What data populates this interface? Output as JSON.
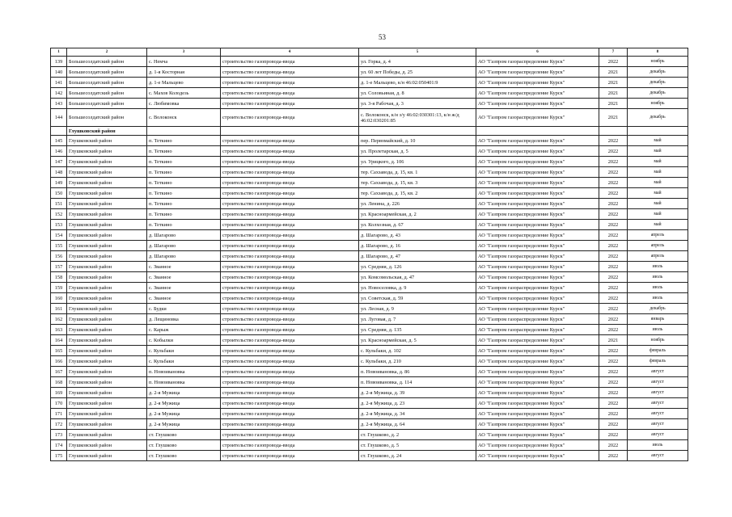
{
  "page_number": "53",
  "columns": [
    "1",
    "2",
    "3",
    "4",
    "5",
    "6",
    "7",
    "8"
  ],
  "rows": [
    {
      "n": "139",
      "district": "Большесолдатский район",
      "settlement": "с. Немча",
      "work": "строительство газопровода-ввода",
      "address": "ул. Горка, д. 4",
      "org": "АО \"Газпром газораспределение Курск\"",
      "year": "2022",
      "month": "ноябрь"
    },
    {
      "n": "140",
      "district": "Большесолдатский район",
      "settlement": "д. 1-я Косторная",
      "work": "строительство газопровода-ввода",
      "address": "ул. 60 лет Победы, д. 25",
      "org": "АО \"Газпром газораспределение Курск\"",
      "year": "2021",
      "month": "декабрь"
    },
    {
      "n": "141",
      "district": "Большесолдатский район",
      "settlement": "д. 1-е Мальцево",
      "work": "строительство газопровода-ввода",
      "address": "д. 1-е Мальцево, к/н 46:02:050401:9",
      "org": "АО \"Газпром газораспределение Курск\"",
      "year": "2021",
      "month": "декабрь"
    },
    {
      "n": "142",
      "district": "Большесолдатский район",
      "settlement": "с. Махов Колодезь",
      "work": "строительство газопровода-ввода",
      "address": "ул. Соловьиная, д. 8",
      "org": "АО \"Газпром газораспределение Курск\"",
      "year": "2021",
      "month": "декабрь"
    },
    {
      "n": "143",
      "district": "Большесолдатский район",
      "settlement": "с. Любимовка",
      "work": "строительство газопровода-ввода",
      "address": "ул. 3-я Рабочая, д. 3",
      "org": "АО \"Газпром газораспределение Курск\"",
      "year": "2021",
      "month": "ноябрь"
    },
    {
      "n": "144",
      "district": "Большесолдатский район",
      "settlement": "с. Волоконск",
      "work": "строительство газопровода-ввода",
      "address": "с. Волоконск, к/н з/у 46:02:030301:13, к/н ж/д 46:02:030201:85",
      "org": "АО \"Газпром газораспределение Курск\"",
      "year": "2021",
      "month": "декабрь",
      "tall": true
    },
    {
      "group": "Глушковский район"
    },
    {
      "n": "145",
      "district": "Глушковский район",
      "settlement": "п. Теткино",
      "work": "строительство газопровода-ввода",
      "address": "пер. Первомайский, д. 10",
      "org": "АО \"Газпром газораспределение Курск\"",
      "year": "2022",
      "month": "май"
    },
    {
      "n": "146",
      "district": "Глушковский район",
      "settlement": "п. Теткино",
      "work": "строительство газопровода-ввода",
      "address": "ул. Пролетарская, д. 5",
      "org": "АО \"Газпром газораспределение Курск\"",
      "year": "2022",
      "month": "май"
    },
    {
      "n": "147",
      "district": "Глушковский район",
      "settlement": "п. Теткино",
      "work": "строительство газопровода-ввода",
      "address": "ул. Урицкого, д. 106",
      "org": "АО \"Газпром газораспределение Курск\"",
      "year": "2022",
      "month": "май"
    },
    {
      "n": "148",
      "district": "Глушковский район",
      "settlement": "п. Теткино",
      "work": "строительство газопровода-ввода",
      "address": "тер. Сахзавода, д. 15, кв. 1",
      "org": "АО \"Газпром газораспределение Курск\"",
      "year": "2022",
      "month": "май"
    },
    {
      "n": "149",
      "district": "Глушковский район",
      "settlement": "п. Теткино",
      "work": "строительство газопровода-ввода",
      "address": "тер. Сахзавода, д. 15, кв. 3",
      "org": "АО \"Газпром газораспределение Курск\"",
      "year": "2022",
      "month": "май"
    },
    {
      "n": "150",
      "district": "Глушковский район",
      "settlement": "п. Теткино",
      "work": "строительство газопровода-ввода",
      "address": "тер. Сахзавода, д. 15, кв. 2",
      "org": "АО \"Газпром газораспределение Курск\"",
      "year": "2022",
      "month": "май"
    },
    {
      "n": "151",
      "district": "Глушковский район",
      "settlement": "п. Теткино",
      "work": "строительство газопровода-ввода",
      "address": "ул. Ленина, д. 226",
      "org": "АО \"Газпром газораспределение Курск\"",
      "year": "2022",
      "month": "май"
    },
    {
      "n": "152",
      "district": "Глушковский район",
      "settlement": "п. Теткино",
      "work": "строительство газопровода-ввода",
      "address": "ул. Красноармейская, д. 2",
      "org": "АО \"Газпром газораспределение Курск\"",
      "year": "2022",
      "month": "май"
    },
    {
      "n": "153",
      "district": "Глушковский район",
      "settlement": "п. Теткино",
      "work": "строительство газопровода-ввода",
      "address": "ул. Колхозная, д. 67",
      "org": "АО \"Газпром газораспределение Курск\"",
      "year": "2022",
      "month": "май"
    },
    {
      "n": "154",
      "district": "Глушковский район",
      "settlement": "д. Шагарово",
      "work": "строительство газопровода-ввода",
      "address": "д. Шагарово, д. 43",
      "org": "АО \"Газпром газораспределение Курск\"",
      "year": "2022",
      "month": "апрель"
    },
    {
      "n": "155",
      "district": "Глушковский район",
      "settlement": "д. Шагарово",
      "work": "строительство газопровода-ввода",
      "address": "д. Шагарово, д. 16",
      "org": "АО \"Газпром газораспределение Курск\"",
      "year": "2022",
      "month": "апрель"
    },
    {
      "n": "156",
      "district": "Глушковский район",
      "settlement": "д. Шагарово",
      "work": "строительство газопровода-ввода",
      "address": "д. Шагарово, д. 47",
      "org": "АО \"Газпром газораспределение Курск\"",
      "year": "2022",
      "month": "апрель"
    },
    {
      "n": "157",
      "district": "Глушковский район",
      "settlement": "с. Званное",
      "work": "строительство газопровода-ввода",
      "address": "ул. Средняя, д. 126",
      "org": "АО \"Газпром газораспределение Курск\"",
      "year": "2022",
      "month": "июль"
    },
    {
      "n": "158",
      "district": "Глушковский район",
      "settlement": "с. Званное",
      "work": "строительство газопровода-ввода",
      "address": "ул. Комсомольская, д. 47",
      "org": "АО \"Газпром газораспределение Курск\"",
      "year": "2022",
      "month": "июль"
    },
    {
      "n": "159",
      "district": "Глушковский район",
      "settlement": "с. Званное",
      "work": "строительство газопровода-ввода",
      "address": "ул. Новоселовка, д. 9",
      "org": "АО \"Газпром газораспределение Курск\"",
      "year": "2022",
      "month": "июль"
    },
    {
      "n": "160",
      "district": "Глушковский район",
      "settlement": "с. Званное",
      "work": "строительство газопровода-ввода",
      "address": "ул. Советская, д. 59",
      "org": "АО \"Газпром газораспределение Курск\"",
      "year": "2022",
      "month": "июль"
    },
    {
      "n": "161",
      "district": "Глушковский район",
      "settlement": "с. Будки",
      "work": "строительство газопровода-ввода",
      "address": "ул. Лесная, д. 9",
      "org": "АО \"Газпром газораспределение Курск\"",
      "year": "2022",
      "month": "декабрь"
    },
    {
      "n": "162",
      "district": "Глушковский район",
      "settlement": "д. Лещиновка",
      "work": "строительство газопровода-ввода",
      "address": "ул. Луговая, д. 7",
      "org": "АО \"Газпром газораспределение Курск\"",
      "year": "2022",
      "month": "январь"
    },
    {
      "n": "163",
      "district": "Глушковский район",
      "settlement": "с. Карыж",
      "work": "строительство газопровода-ввода",
      "address": "ул. Средняя, д. 135",
      "org": "АО \"Газпром газораспределение Курск\"",
      "year": "2022",
      "month": "июль"
    },
    {
      "n": "164",
      "district": "Глушковский район",
      "settlement": "с. Кобылки",
      "work": "строительство газопровода-ввода",
      "address": "ул. Красноармейская, д. 5",
      "org": "АО \"Газпром газораспределение Курск\"",
      "year": "2021",
      "month": "ноябрь"
    },
    {
      "n": "165",
      "district": "Глушковский район",
      "settlement": "с. Кульбаки",
      "work": "строительство газопровода-ввода",
      "address": "с. Кульбаки, д. 102",
      "org": "АО \"Газпром газораспределение Курск\"",
      "year": "2022",
      "month": "февраль"
    },
    {
      "n": "166",
      "district": "Глушковский район",
      "settlement": "с. Кульбаки",
      "work": "строительство газопровода-ввода",
      "address": "с. Кульбаки, д. 210",
      "org": "АО \"Газпром газораспределение Курск\"",
      "year": "2022",
      "month": "февраль"
    },
    {
      "n": "167",
      "district": "Глушковский район",
      "settlement": "п. Новоивановка",
      "work": "строительство газопровода-ввода",
      "address": "п. Новоивановка, д. 86",
      "org": "АО \"Газпром газораспределение Курск\"",
      "year": "2022",
      "month": "август"
    },
    {
      "n": "168",
      "district": "Глушковский район",
      "settlement": "п. Новоивановка",
      "work": "строительство газопровода-ввода",
      "address": "п. Новоивановка, д. 114",
      "org": "АО \"Газпром газораспределение Курск\"",
      "year": "2022",
      "month": "август"
    },
    {
      "n": "169",
      "district": "Глушковский район",
      "settlement": "д. 2-я Мужица",
      "work": "строительство газопровода-ввода",
      "address": "д. 2-я Мужица, д. 39",
      "org": "АО \"Газпром газораспределение Курск\"",
      "year": "2022",
      "month": "август"
    },
    {
      "n": "170",
      "district": "Глушковский район",
      "settlement": "д. 2-я Мужица",
      "work": "строительство газопровода-ввода",
      "address": "д. 2-я Мужица, д. 23",
      "org": "АО \"Газпром газораспределение Курск\"",
      "year": "2022",
      "month": "август"
    },
    {
      "n": "171",
      "district": "Глушковский район",
      "settlement": "д. 2-я Мужица",
      "work": "строительство газопровода-ввода",
      "address": "д. 2-я Мужица, д. 34",
      "org": "АО \"Газпром газораспределение Курск\"",
      "year": "2022",
      "month": "август"
    },
    {
      "n": "172",
      "district": "Глушковский район",
      "settlement": "д. 2-я Мужица",
      "work": "строительство газопровода-ввода",
      "address": "д. 2-я Мужица, д. 64",
      "org": "АО \"Газпром газораспределение Курск\"",
      "year": "2022",
      "month": "август"
    },
    {
      "n": "173",
      "district": "Глушковский район",
      "settlement": "ст. Глушково",
      "work": "строительство газопровода-ввода",
      "address": "ст. Глушково, д. 2",
      "org": "АО \"Газпром газораспределение Курск\"",
      "year": "2022",
      "month": "август"
    },
    {
      "n": "174",
      "district": "Глушковский район",
      "settlement": "ст. Глушково",
      "work": "строительство газопровода-ввода",
      "address": "ст. Глушково, д. 5",
      "org": "АО \"Газпром газораспределение Курск\"",
      "year": "2022",
      "month": "июль"
    },
    {
      "n": "175",
      "district": "Глушковский район",
      "settlement": "ст. Глушково",
      "work": "строительство газопровода-ввода",
      "address": "ст. Глушково, д. 24",
      "org": "АО \"Газпром газораспределение Курск\"",
      "year": "2022",
      "month": "август"
    }
  ]
}
